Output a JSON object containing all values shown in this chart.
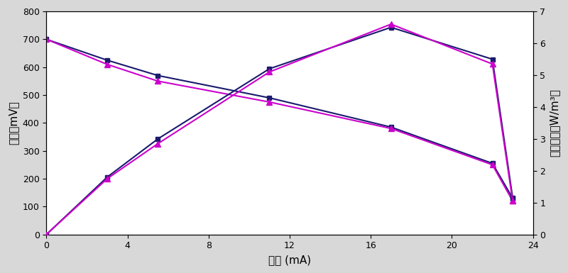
{
  "x_current": [
    0,
    3,
    5.5,
    11,
    17,
    22,
    23
  ],
  "voltage_navy": [
    700,
    625,
    570,
    490,
    385,
    255,
    130
  ],
  "voltage_magenta": [
    700,
    610,
    550,
    475,
    380,
    250,
    120
  ],
  "power_navy": [
    0,
    1.8,
    3.0,
    5.2,
    6.5,
    5.5,
    1.15
  ],
  "power_magenta": [
    0,
    1.75,
    2.85,
    5.1,
    6.6,
    5.35,
    1.05
  ],
  "xlabel": "电流 (mA)",
  "ylabel_left": "电压（mV）",
  "ylabel_right": "功率密度（W/m³）",
  "xlim": [
    0,
    24
  ],
  "ylim_left": [
    0,
    800
  ],
  "ylim_right": [
    0,
    7
  ],
  "xticks": [
    0,
    4,
    8,
    12,
    16,
    20,
    24
  ],
  "yticks_left": [
    0,
    100,
    200,
    300,
    400,
    500,
    600,
    700,
    800
  ],
  "yticks_right": [
    0,
    1,
    2,
    3,
    4,
    5,
    6,
    7
  ],
  "color_navy": "#1a1a6e",
  "color_magenta": "#cc00cc",
  "bg_color": "#d8d8d8",
  "plot_bg": "#ffffff"
}
